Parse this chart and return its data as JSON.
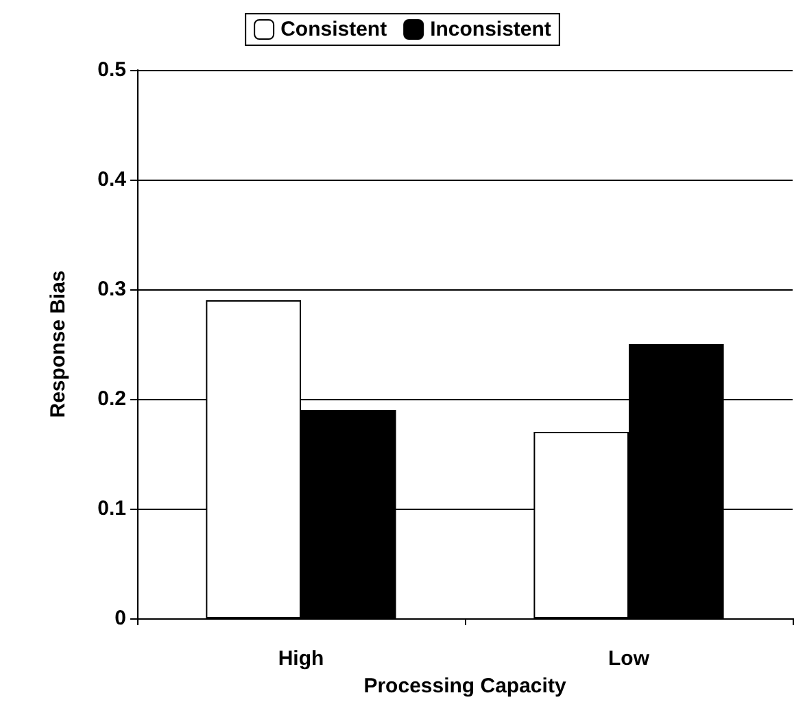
{
  "chart_data": {
    "type": "bar",
    "xlabel": "Processing Capacity",
    "ylabel": "Response Bias",
    "categories": [
      "High",
      "Low"
    ],
    "series": [
      {
        "name": "Consistent",
        "color": "#ffffff",
        "values": [
          0.29,
          0.17
        ]
      },
      {
        "name": "Inconsistent",
        "color": "#000000",
        "values": [
          0.19,
          0.25
        ]
      }
    ],
    "ylim": [
      0,
      0.5
    ],
    "yticks": [
      0,
      0.1,
      0.2,
      0.3,
      0.4,
      0.5
    ],
    "grid": "y",
    "legend": "top"
  }
}
